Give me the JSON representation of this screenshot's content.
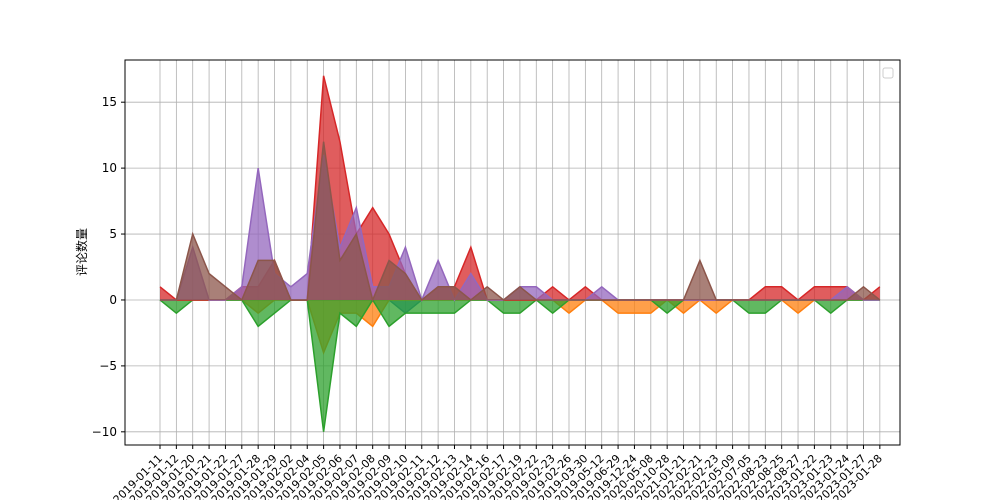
{
  "chart_data": {
    "type": "area",
    "title": "",
    "xlabel": "",
    "ylabel": "评论数量",
    "ylim": [
      -11,
      18.2
    ],
    "yticks": [
      -10,
      -5,
      0,
      5,
      10,
      15
    ],
    "ytick_labels": [
      "−10",
      "−5",
      "0",
      "5",
      "10",
      "15"
    ],
    "grid": true,
    "legend": {
      "placement": "top-right",
      "entries": []
    },
    "categories": [
      "2019-01-11",
      "2019-01-12",
      "2019-01-20",
      "2019-01-21",
      "2019-01-22",
      "2019-01-27",
      "2019-01-28",
      "2019-01-29",
      "2019-02-02",
      "2019-02-04",
      "2019-02-05",
      "2019-02-06",
      "2019-02-07",
      "2019-02-08",
      "2019-02-09",
      "2019-02-10",
      "2019-02-11",
      "2019-02-12",
      "2019-02-13",
      "2019-02-14",
      "2019-02-16",
      "2019-02-17",
      "2019-02-19",
      "2019-02-22",
      "2019-02-23",
      "2019-02-26",
      "2019-03-30",
      "2019-05-12",
      "2019-06-29",
      "2019-12-24",
      "2020-05-08",
      "2020-10-28",
      "2021-01-21",
      "2022-02-21",
      "2022-02-23",
      "2022-05-09",
      "2022-07-05",
      "2022-08-23",
      "2022-08-25",
      "2022-08-27",
      "2023-01-22",
      "2023-01-23",
      "2023-01-24",
      "2023-01-27",
      "2023-01-28"
    ],
    "series": [
      {
        "color": "#1f77b4",
        "values": [
          0,
          0,
          0,
          0,
          0,
          0,
          0,
          0,
          0,
          0,
          0,
          0,
          0,
          0,
          0,
          -1,
          0,
          0,
          0,
          0,
          0,
          0,
          0,
          0,
          0,
          0,
          0,
          0,
          0,
          0,
          0,
          0,
          0,
          0,
          0,
          0,
          0,
          0,
          0,
          0,
          0,
          0,
          0,
          0,
          0
        ]
      },
      {
        "color": "#ff7f0e",
        "values": [
          0,
          0,
          0,
          0,
          0,
          0,
          -1,
          0,
          0,
          0,
          -4,
          -1,
          -1,
          -2,
          0,
          0,
          0,
          0,
          0,
          0,
          0,
          0,
          0,
          0,
          0,
          -1,
          0,
          0,
          -1,
          -1,
          -1,
          0,
          -1,
          0,
          -1,
          0,
          0,
          0,
          0,
          -1,
          0,
          0,
          0,
          0,
          0
        ]
      },
      {
        "color": "#2ca02c",
        "values": [
          0,
          -1,
          0,
          0,
          0,
          0,
          -2,
          -1,
          0,
          0,
          -10,
          -1,
          -2,
          0,
          -2,
          -1,
          -1,
          -1,
          -1,
          0,
          0,
          -1,
          -1,
          0,
          -1,
          0,
          0,
          0,
          0,
          0,
          0,
          -1,
          0,
          0,
          0,
          0,
          -1,
          -1,
          0,
          0,
          0,
          -1,
          0,
          0,
          0
        ]
      },
      {
        "color": "#d62728",
        "values": [
          1,
          0,
          0,
          0,
          0,
          1,
          1,
          3,
          0,
          0,
          17,
          12,
          5,
          7,
          5,
          2,
          0,
          1,
          1,
          4,
          0,
          0,
          0,
          0,
          1,
          0,
          1,
          0,
          0,
          0,
          0,
          0,
          0,
          0,
          0,
          0,
          0,
          1,
          1,
          0,
          1,
          1,
          1,
          0,
          1
        ]
      },
      {
        "color": "#9467bd",
        "values": [
          0,
          0,
          4,
          0,
          0,
          1,
          10,
          2,
          1,
          2,
          11,
          4,
          7,
          1,
          1,
          4,
          0,
          3,
          0,
          2,
          0,
          0,
          1,
          1,
          0,
          0,
          0,
          1,
          0,
          0,
          0,
          0,
          0,
          0,
          0,
          0,
          0,
          0,
          0,
          0,
          0,
          0,
          1,
          0,
          0
        ]
      },
      {
        "color": "#8c564b",
        "values": [
          0,
          0,
          5,
          2,
          1,
          0,
          3,
          3,
          0,
          0,
          12,
          3,
          5,
          0,
          3,
          2,
          0,
          1,
          1,
          0,
          1,
          0,
          1,
          0,
          0,
          0,
          0,
          0,
          0,
          0,
          0,
          0,
          0,
          3,
          0,
          0,
          0,
          0,
          0,
          0,
          0,
          0,
          0,
          1,
          0
        ]
      }
    ]
  }
}
